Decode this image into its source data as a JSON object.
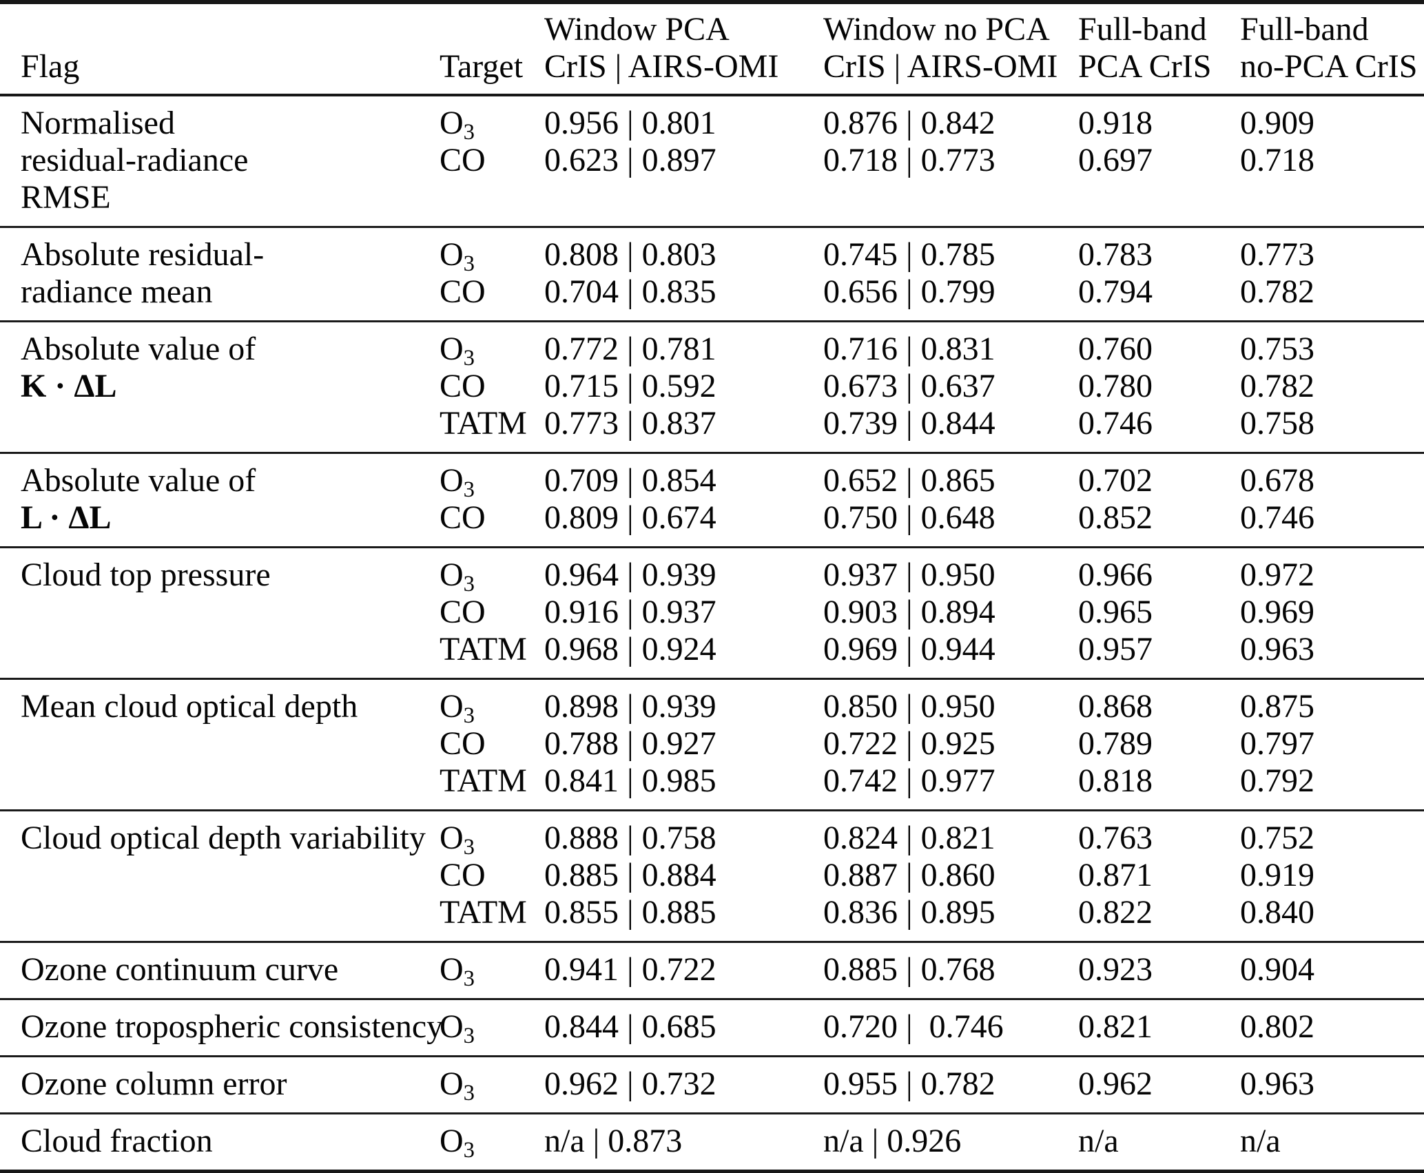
{
  "colors": {
    "background": "#ffffff",
    "text": "#050505",
    "rule": "#171717"
  },
  "table": {
    "columns": [
      {
        "id": "flag",
        "lines": [
          "",
          "Flag"
        ]
      },
      {
        "id": "target",
        "lines": [
          "",
          "Target"
        ]
      },
      {
        "id": "window_pca",
        "lines": [
          "Window PCA",
          "CrIS | AIRS-OMI"
        ]
      },
      {
        "id": "window_no_pca",
        "lines": [
          "Window no PCA",
          "CrIS | AIRS-OMI"
        ]
      },
      {
        "id": "fullband_pca",
        "lines": [
          "Full-band",
          "PCA CrIS"
        ]
      },
      {
        "id": "fullband_no_pca",
        "lines": [
          "Full-band",
          "no-PCA CrIS"
        ]
      }
    ],
    "groups": [
      {
        "flag_lines": [
          {
            "text": "Normalised"
          },
          {
            "text": "residual-radiance"
          },
          {
            "text": "RMSE"
          }
        ],
        "entries": [
          {
            "target": "O3",
            "values": [
              "0.956 | 0.801",
              "0.876 | 0.842",
              "0.918",
              "0.909"
            ]
          },
          {
            "target": "CO",
            "values": [
              "0.623 | 0.897",
              "0.718 | 0.773",
              "0.697",
              "0.718"
            ]
          }
        ]
      },
      {
        "flag_lines": [
          {
            "text": "Absolute residual-"
          },
          {
            "text": "radiance mean"
          }
        ],
        "entries": [
          {
            "target": "O3",
            "values": [
              "0.808 | 0.803",
              "0.745 | 0.785",
              "0.783",
              "0.773"
            ]
          },
          {
            "target": "CO",
            "values": [
              "0.704 | 0.835",
              "0.656 | 0.799",
              "0.794",
              "0.782"
            ]
          }
        ]
      },
      {
        "flag_lines": [
          {
            "text": "Absolute value of"
          },
          {
            "text": "K · ΔL",
            "bold": true
          }
        ],
        "entries": [
          {
            "target": "O3",
            "values": [
              "0.772 | 0.781",
              "0.716 | 0.831",
              "0.760",
              "0.753"
            ]
          },
          {
            "target": "CO",
            "values": [
              "0.715 | 0.592",
              "0.673 | 0.637",
              "0.780",
              "0.782"
            ]
          },
          {
            "target": "TATM",
            "values": [
              "0.773 | 0.837",
              "0.739 | 0.844",
              "0.746",
              "0.758"
            ]
          }
        ]
      },
      {
        "flag_lines": [
          {
            "text": "Absolute value of"
          },
          {
            "text": "L · ΔL",
            "bold": true
          }
        ],
        "entries": [
          {
            "target": "O3",
            "values": [
              "0.709 | 0.854",
              "0.652 | 0.865",
              "0.702",
              "0.678"
            ]
          },
          {
            "target": "CO",
            "values": [
              "0.809 | 0.674",
              "0.750 | 0.648",
              "0.852",
              "0.746"
            ]
          }
        ]
      },
      {
        "flag_lines": [
          {
            "text": "Cloud top pressure"
          }
        ],
        "entries": [
          {
            "target": "O3",
            "values": [
              "0.964 | 0.939",
              "0.937 | 0.950",
              "0.966",
              "0.972"
            ]
          },
          {
            "target": "CO",
            "values": [
              "0.916 | 0.937",
              "0.903 | 0.894",
              "0.965",
              "0.969"
            ]
          },
          {
            "target": "TATM",
            "values": [
              "0.968 | 0.924",
              "0.969 | 0.944",
              "0.957",
              "0.963"
            ]
          }
        ]
      },
      {
        "flag_lines": [
          {
            "text": "Mean cloud optical depth"
          }
        ],
        "entries": [
          {
            "target": "O3",
            "values": [
              "0.898 | 0.939",
              "0.850 | 0.950",
              "0.868",
              "0.875"
            ]
          },
          {
            "target": "CO",
            "values": [
              "0.788 | 0.927",
              "0.722 | 0.925",
              "0.789",
              "0.797"
            ]
          },
          {
            "target": "TATM",
            "values": [
              "0.841 | 0.985",
              "0.742 | 0.977",
              "0.818",
              "0.792"
            ]
          }
        ]
      },
      {
        "flag_lines": [
          {
            "text": "Cloud optical depth variability"
          }
        ],
        "entries": [
          {
            "target": "O3",
            "values": [
              "0.888 | 0.758",
              "0.824 | 0.821",
              "0.763",
              "0.752"
            ]
          },
          {
            "target": "CO",
            "values": [
              "0.885 | 0.884",
              "0.887 | 0.860",
              "0.871",
              "0.919"
            ]
          },
          {
            "target": "TATM",
            "values": [
              "0.855 | 0.885",
              "0.836 | 0.895",
              "0.822",
              "0.840"
            ]
          }
        ]
      },
      {
        "flag_lines": [
          {
            "text": "Ozone continuum curve"
          }
        ],
        "entries": [
          {
            "target": "O3",
            "values": [
              "0.941 | 0.722",
              "0.885 | 0.768",
              "0.923",
              "0.904"
            ]
          }
        ]
      },
      {
        "flag_lines": [
          {
            "text": "Ozone tropospheric consistency"
          }
        ],
        "entries": [
          {
            "target": "O3",
            "values": [
              "0.844 | 0.685",
              "0.720 |  0.746",
              "0.821",
              "0.802"
            ]
          }
        ]
      },
      {
        "flag_lines": [
          {
            "text": "Ozone column error"
          }
        ],
        "entries": [
          {
            "target": "O3",
            "values": [
              "0.962 | 0.732",
              "0.955 | 0.782",
              "0.962",
              "0.963"
            ]
          }
        ]
      },
      {
        "flag_lines": [
          {
            "text": "Cloud fraction"
          }
        ],
        "entries": [
          {
            "target": "O3",
            "values": [
              "n/a | 0.873",
              "n/a | 0.926",
              "n/a",
              "n/a"
            ]
          }
        ]
      }
    ]
  }
}
